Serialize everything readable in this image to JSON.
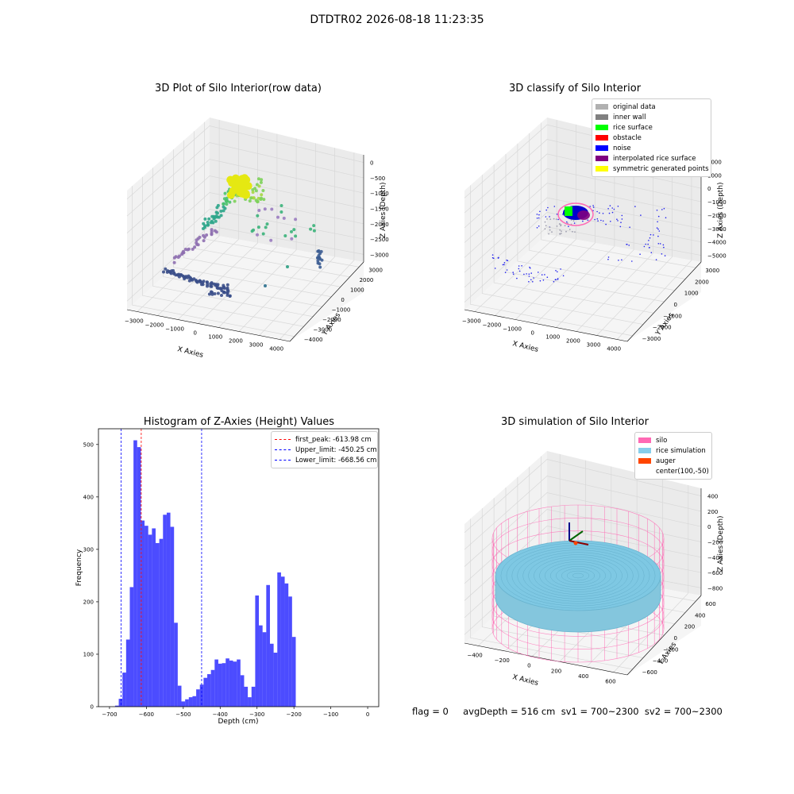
{
  "figure": {
    "suptitle": "DTDTR02 2026-08-18 11:23:35",
    "status_line": "flag = 0     avgDepth = 516 cm  sv1 = 700~2300  sv2 = 700~2300"
  },
  "panels": {
    "raw": {
      "title": "3D Plot of Silo Interior(row data)",
      "xlabel": "X Axies",
      "ylabel": "Y Axies",
      "zlabel": "Z Axies (Depth)",
      "xticks": [
        "−3000",
        "−2000",
        "−1000",
        "0",
        "1000",
        "2000",
        "3000",
        "4000"
      ],
      "yticks": [
        "−4000",
        "−3000",
        "−2000",
        "−1000",
        "0",
        "1000",
        "2000",
        "3000"
      ],
      "zticks": [
        "−3000",
        "−2500",
        "−2000",
        "−1500",
        "−1000",
        "−500",
        "0"
      ]
    },
    "classify": {
      "title": "3D classify of Silo Interior",
      "xlabel": "X Axies",
      "ylabel": "Y Axies",
      "zlabel": "Z Axies (Depth)",
      "xticks": [
        "−3000",
        "−2000",
        "−1000",
        "0",
        "1000",
        "2000",
        "3000",
        "4000"
      ],
      "yticks": [
        "−3000",
        "−2000",
        "−1000",
        "0",
        "1000",
        "2000",
        "3000"
      ],
      "zticks": [
        "−5000",
        "−4000",
        "−3000",
        "−2000",
        "−1000",
        "0",
        "1000",
        "2000"
      ],
      "legend": [
        {
          "label": "original data",
          "color": "#b0b0b0"
        },
        {
          "label": "inner wall",
          "color": "#808080"
        },
        {
          "label": "rice surface",
          "color": "#00ff00"
        },
        {
          "label": "obstacle",
          "color": "#ff0000"
        },
        {
          "label": "noise",
          "color": "#0000ff"
        },
        {
          "label": "interpolated rice surface",
          "color": "#800080"
        },
        {
          "label": "symmetric generated points",
          "color": "#ffff00"
        }
      ]
    },
    "simulation": {
      "title": "3D simulation of Silo Interior",
      "xlabel": "X Axies",
      "ylabel": "Y Axies",
      "zlabel": "Z Axies (Depth)",
      "xticks": [
        "−400",
        "−200",
        "0",
        "200",
        "400",
        "600"
      ],
      "yticks": [
        "−600",
        "−400",
        "−200",
        "0",
        "200",
        "400",
        "600"
      ],
      "zticks": [
        "−800",
        "−600",
        "−400",
        "−200",
        "0",
        "200",
        "400"
      ],
      "legend": [
        {
          "label": "silo",
          "color": "#ff69b4"
        },
        {
          "label": "rice simulation",
          "color": "#87ceeb"
        },
        {
          "label": "auger",
          "color": "#ff4500"
        },
        {
          "label": "center(100,-50)",
          "color": ""
        }
      ]
    }
  },
  "chart_data": [
    {
      "type": "bar",
      "title": "Histogram of Z-Axies (Height) Values",
      "xlabel": "Depth (cm)",
      "ylabel": "Frequency",
      "xlim": [
        -730,
        30
      ],
      "ylim": [
        0,
        530
      ],
      "xticks": [
        -700,
        -600,
        -500,
        -400,
        -300,
        -200,
        -100,
        0
      ],
      "yticks": [
        0,
        100,
        200,
        300,
        400,
        500
      ],
      "bin_start": -685,
      "bin_width": 10,
      "values": [
        2,
        15,
        65,
        128,
        228,
        508,
        495,
        355,
        345,
        328,
        340,
        312,
        320,
        366,
        370,
        343,
        160,
        40,
        10,
        14,
        18,
        20,
        33,
        42,
        55,
        62,
        70,
        90,
        82,
        83,
        92,
        88,
        86,
        90,
        60,
        38,
        18,
        38,
        212,
        155,
        142,
        232,
        120,
        103,
        256,
        248,
        235,
        210,
        133
      ],
      "color": "#0000ff",
      "lines": [
        {
          "label": "first_peak: -613.98 cm",
          "x": -613.98,
          "color": "#ff0000"
        },
        {
          "label": "Upper_limit: -450.25 cm",
          "x": -450.25,
          "color": "#0000ff"
        },
        {
          "label": "Lower_limit: -668.56 cm",
          "x": -668.56,
          "color": "#0000ff"
        }
      ]
    }
  ]
}
